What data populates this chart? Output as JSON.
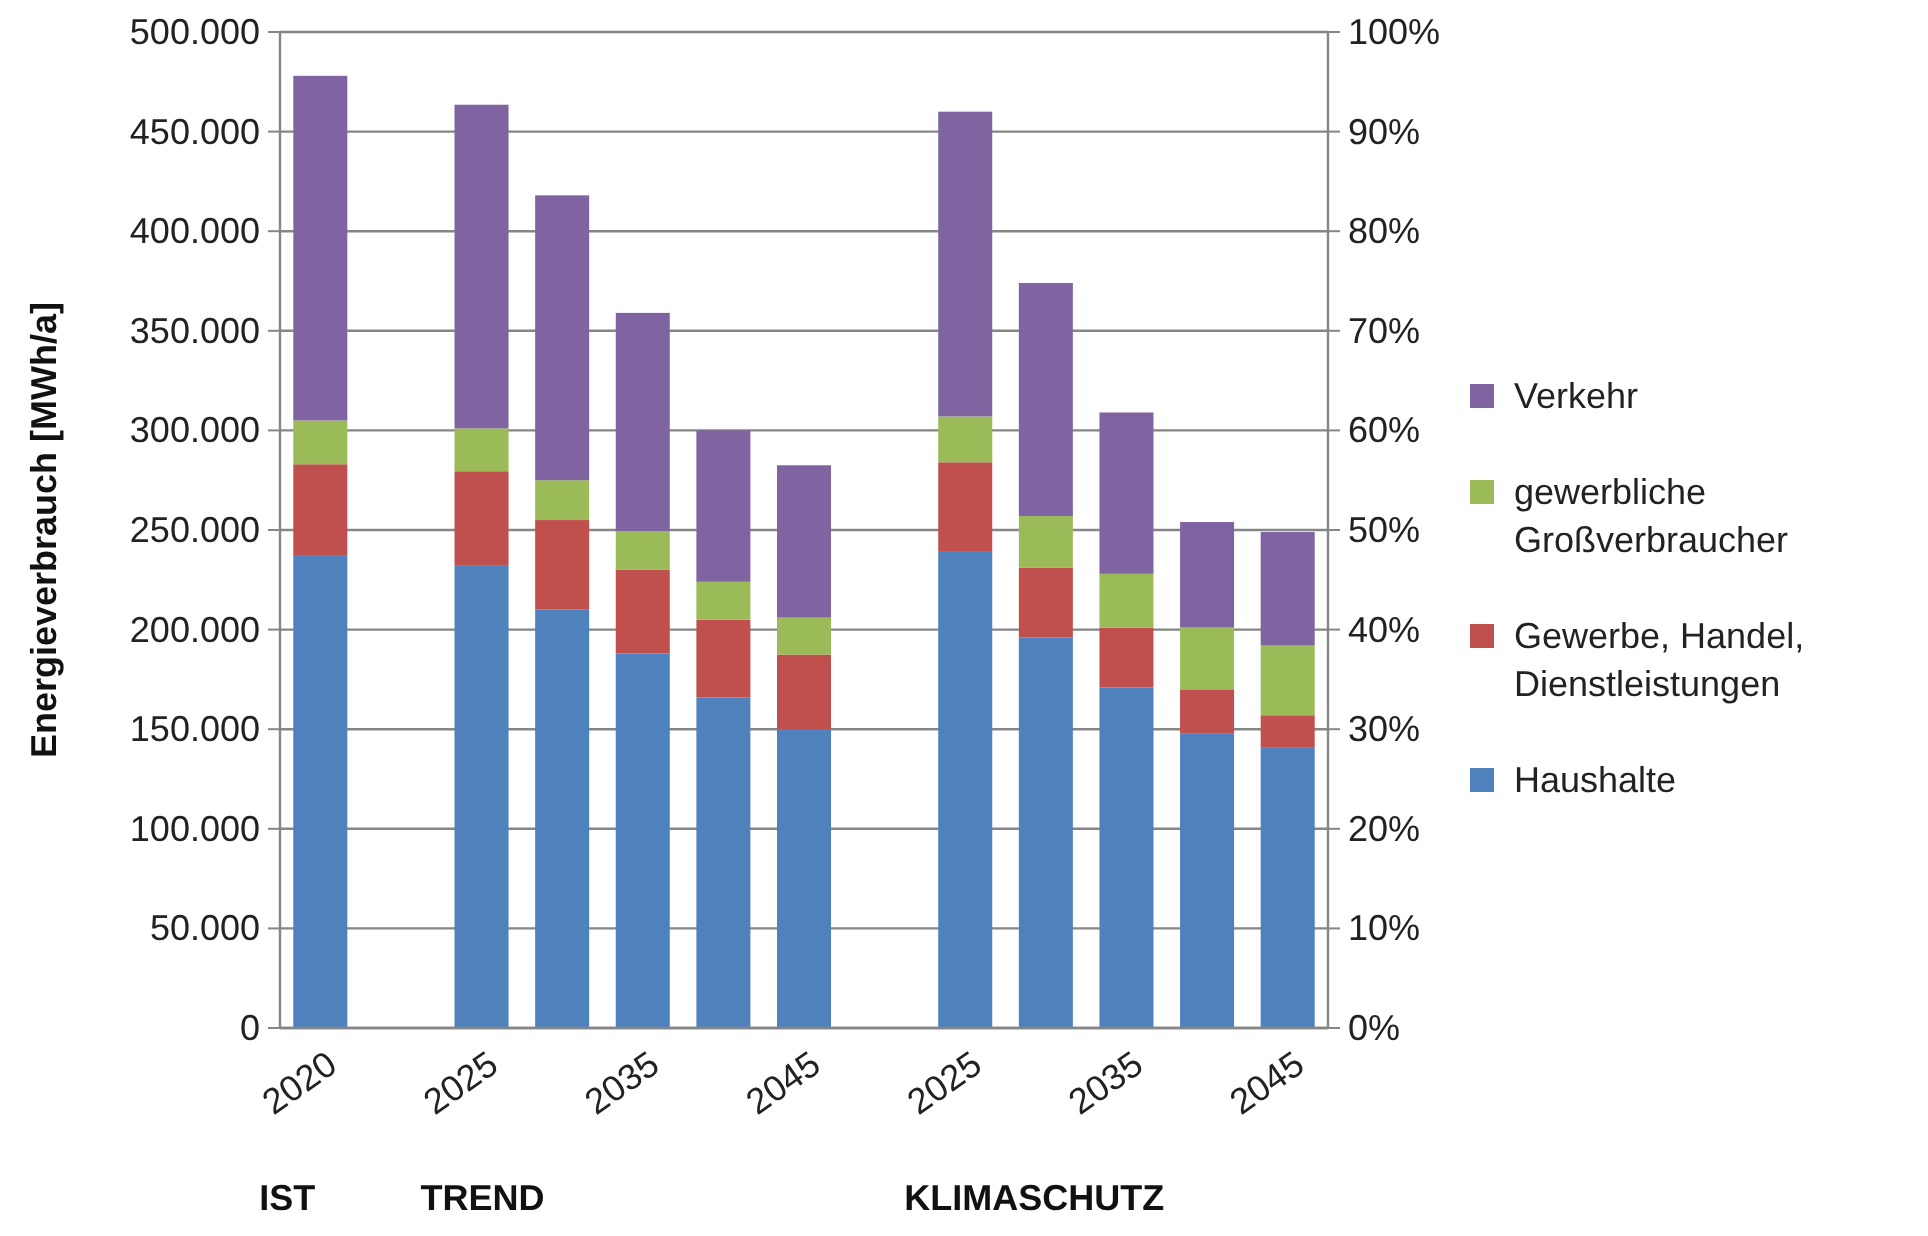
{
  "chart_data": {
    "type": "bar",
    "stacked": true,
    "ylabel": "Energieverbrauch [MWh/a]",
    "categories": [
      "2020",
      null,
      "2025",
      null,
      "2035",
      null,
      "2045",
      null,
      "2025",
      null,
      "2035",
      null,
      "2045"
    ],
    "series": [
      {
        "name": "Haushalte",
        "color": "#4f81bd",
        "values": [
          237000,
          null,
          232000,
          210000,
          188000,
          166000,
          150000,
          null,
          239000,
          196000,
          171000,
          148000,
          141000
        ]
      },
      {
        "name": "Gewerbe, Handel, Dienstleistungen",
        "color": "#c0504d",
        "values": [
          46000,
          null,
          47500,
          45000,
          42000,
          39000,
          37500,
          null,
          45000,
          35000,
          30000,
          22000,
          16000
        ]
      },
      {
        "name": "gewerbliche Großverbraucher",
        "color": "#9bbb59",
        "values": [
          22000,
          null,
          21500,
          20000,
          19500,
          19000,
          18500,
          null,
          23000,
          26000,
          27000,
          31000,
          35000
        ]
      },
      {
        "name": "Verkehr",
        "color": "#8064a2",
        "values": [
          173000,
          null,
          162500,
          143000,
          109500,
          76000,
          76500,
          null,
          153000,
          117000,
          81000,
          53000,
          57000
        ]
      }
    ],
    "ylim": [
      0,
      500000
    ],
    "yticks": [
      {
        "value": 0,
        "label": "0"
      },
      {
        "value": 50000,
        "label": "50.000"
      },
      {
        "value": 100000,
        "label": "100.000"
      },
      {
        "value": 150000,
        "label": "150.000"
      },
      {
        "value": 200000,
        "label": "200.000"
      },
      {
        "value": 250000,
        "label": "250.000"
      },
      {
        "value": 300000,
        "label": "300.000"
      },
      {
        "value": 350000,
        "label": "350.000"
      },
      {
        "value": 400000,
        "label": "400.000"
      },
      {
        "value": 450000,
        "label": "450.000"
      },
      {
        "value": 500000,
        "label": "500.000"
      }
    ],
    "y2lim": [
      0,
      100
    ],
    "y2ticks": [
      {
        "value": 0,
        "label": "0%"
      },
      {
        "value": 10,
        "label": "10%"
      },
      {
        "value": 20,
        "label": "20%"
      },
      {
        "value": 30,
        "label": "30%"
      },
      {
        "value": 40,
        "label": "40%"
      },
      {
        "value": 50,
        "label": "50%"
      },
      {
        "value": 60,
        "label": "60%"
      },
      {
        "value": 70,
        "label": "70%"
      },
      {
        "value": 80,
        "label": "80%"
      },
      {
        "value": 90,
        "label": "90%"
      },
      {
        "value": 100,
        "label": "100%"
      }
    ],
    "grid": "y",
    "legend": "right",
    "annotations": [
      "IST",
      "TREND",
      "KLIMASCHUTZ"
    ]
  }
}
